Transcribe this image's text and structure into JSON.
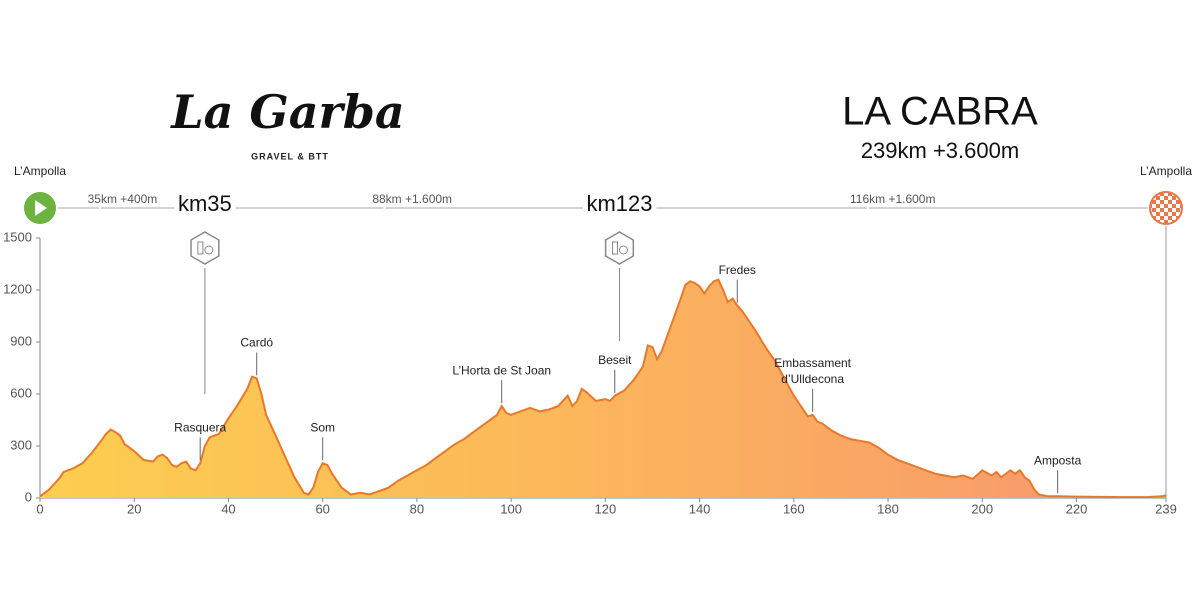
{
  "header": {
    "logo": "La Garba",
    "logo_subtitle": "GRAVEL & BTT",
    "title": "LA CABRA",
    "subtitle": "239km +3.600m"
  },
  "chart_data": {
    "type": "area",
    "start_label": "L’Ampolla",
    "finish_label": "L’Ampolla",
    "segments": [
      "35km +400m",
      "88km +1.600m",
      "116km +1.600m"
    ],
    "waypoints": [
      {
        "label": "km35",
        "x": 35
      },
      {
        "label": "km123",
        "x": 123
      }
    ],
    "x": [
      0,
      2,
      4,
      5,
      7,
      9,
      11,
      13,
      14,
      15,
      16,
      17,
      18,
      20,
      22,
      24,
      25,
      26,
      27,
      28,
      29,
      30,
      31,
      32,
      33,
      34,
      35,
      36,
      38,
      40,
      42,
      44,
      45,
      46,
      47,
      48,
      50,
      52,
      54,
      56,
      57,
      58,
      59,
      60,
      61,
      62,
      64,
      66,
      68,
      70,
      72,
      74,
      76,
      78,
      80,
      82,
      84,
      86,
      88,
      90,
      92,
      94,
      96,
      97,
      98,
      99,
      100,
      102,
      104,
      106,
      108,
      110,
      112,
      113,
      114,
      115,
      116,
      118,
      120,
      121,
      122,
      124,
      126,
      128,
      129,
      130,
      131,
      132,
      134,
      136,
      137,
      138,
      139,
      140,
      141,
      142,
      143,
      144,
      145,
      146,
      147,
      148,
      149,
      150,
      152,
      154,
      156,
      158,
      160,
      162,
      163,
      164,
      165,
      166,
      168,
      170,
      172,
      174,
      176,
      178,
      180,
      182,
      184,
      186,
      188,
      190,
      192,
      194,
      196,
      198,
      200,
      202,
      203,
      204,
      206,
      207,
      208,
      209,
      210,
      211,
      212,
      214,
      216,
      220,
      230,
      235,
      238,
      239
    ],
    "values": [
      10,
      50,
      110,
      150,
      170,
      200,
      260,
      330,
      370,
      395,
      380,
      360,
      310,
      270,
      220,
      210,
      240,
      250,
      230,
      190,
      180,
      200,
      210,
      170,
      160,
      200,
      300,
      350,
      370,
      460,
      540,
      630,
      700,
      690,
      600,
      480,
      360,
      240,
      120,
      30,
      20,
      60,
      150,
      200,
      190,
      140,
      60,
      20,
      30,
      20,
      40,
      60,
      100,
      130,
      160,
      190,
      230,
      270,
      310,
      340,
      380,
      420,
      460,
      480,
      530,
      490,
      480,
      500,
      520,
      500,
      510,
      530,
      590,
      530,
      560,
      630,
      610,
      560,
      570,
      560,
      590,
      620,
      680,
      760,
      880,
      870,
      800,
      850,
      1000,
      1150,
      1230,
      1250,
      1240,
      1220,
      1180,
      1220,
      1250,
      1260,
      1200,
      1130,
      1150,
      1110,
      1080,
      1040,
      960,
      870,
      790,
      690,
      590,
      510,
      470,
      480,
      440,
      430,
      390,
      360,
      340,
      330,
      320,
      290,
      250,
      220,
      200,
      180,
      160,
      140,
      130,
      120,
      130,
      110,
      160,
      130,
      150,
      120,
      160,
      140,
      160,
      120,
      100,
      50,
      20,
      10,
      10,
      8,
      5,
      5,
      10,
      15
    ],
    "xlim": [
      0,
      239
    ],
    "ylim": [
      0,
      1500
    ],
    "xticks": [
      0,
      20,
      40,
      60,
      80,
      100,
      120,
      140,
      160,
      180,
      200,
      220,
      239
    ],
    "yticks": [
      0,
      300,
      600,
      900,
      1200,
      1500
    ],
    "color": "#e8782a",
    "annotations": [
      {
        "label": [
          "Rasquera"
        ],
        "x": 34
      },
      {
        "label": [
          "Cardó"
        ],
        "x": 46
      },
      {
        "label": [
          "Som"
        ],
        "x": 60
      },
      {
        "label": [
          "L’Horta de St Joan"
        ],
        "x": 98
      },
      {
        "label": [
          "Beseit"
        ],
        "x": 122
      },
      {
        "label": [
          "Fredes"
        ],
        "x": 148
      },
      {
        "label": [
          "Embassament",
          "d’Ulldecona"
        ],
        "x": 164
      },
      {
        "label": [
          "Amposta"
        ],
        "x": 216
      }
    ]
  }
}
